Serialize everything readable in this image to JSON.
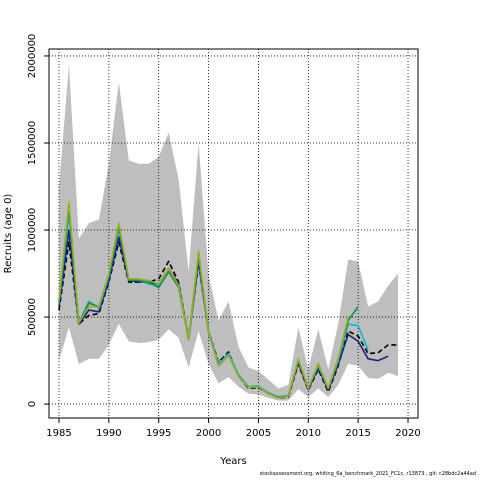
{
  "chart_data": {
    "type": "line",
    "xlabel": "Years",
    "ylabel": "Recruits (age 0)",
    "xlim": [
      1984,
      2021
    ],
    "ylim": [
      -80000,
      2040000
    ],
    "xticks": [
      1985,
      1990,
      1995,
      2000,
      2005,
      2010,
      2015,
      2020
    ],
    "yticks": [
      0,
      500000,
      1000000,
      1500000,
      2000000
    ],
    "xtick_labels": [
      "1985",
      "1990",
      "1995",
      "2000",
      "2005",
      "2010",
      "2015",
      "2020"
    ],
    "ytick_labels": [
      "0",
      "500000",
      "1000000",
      "1500000",
      "2000000"
    ],
    "grid": true,
    "legend": "none",
    "band": {
      "x": [
        1985,
        1986,
        1987,
        1988,
        1989,
        1990,
        1991,
        1992,
        1993,
        1994,
        1995,
        1996,
        1997,
        1998,
        1999,
        2000,
        2001,
        2002,
        2003,
        2004,
        2005,
        2006,
        2007,
        2008,
        2009,
        2010,
        2011,
        2012,
        2013,
        2014,
        2015,
        2016,
        2017,
        2018,
        2019
      ],
      "upper": [
        1250000,
        1950000,
        950000,
        1040000,
        1060000,
        1380000,
        1850000,
        1400000,
        1380000,
        1380000,
        1420000,
        1560000,
        1290000,
        760000,
        1500000,
        740000,
        480000,
        590000,
        330000,
        210000,
        190000,
        140000,
        90000,
        110000,
        440000,
        200000,
        430000,
        200000,
        460000,
        830000,
        820000,
        560000,
        590000,
        680000,
        750000
      ],
      "lower": [
        250000,
        440000,
        230000,
        260000,
        260000,
        340000,
        460000,
        360000,
        350000,
        355000,
        370000,
        430000,
        380000,
        210000,
        420000,
        230000,
        120000,
        155000,
        100000,
        60000,
        55000,
        35000,
        20000,
        20000,
        85000,
        40000,
        90000,
        40000,
        110000,
        230000,
        220000,
        150000,
        145000,
        180000,
        160000
      ],
      "color": "#bebebe"
    },
    "series": [
      {
        "color": "#000000",
        "dashed": true,
        "x": [
          1985,
          1986,
          1987,
          1988,
          1989,
          1990,
          1991,
          1992,
          1993,
          1994,
          1995,
          1996,
          1997,
          1998,
          1999,
          2000,
          2001,
          2002,
          2003,
          2004,
          2005,
          2006,
          2007,
          2008,
          2009,
          2010,
          2011,
          2012,
          2013,
          2014,
          2015,
          2016,
          2017,
          2018,
          2019
        ],
        "values": [
          540000,
          930000,
          460000,
          510000,
          520000,
          700000,
          930000,
          700000,
          700000,
          700000,
          720000,
          820000,
          700000,
          380000,
          810000,
          420000,
          240000,
          300000,
          160000,
          90000,
          95000,
          60000,
          35000,
          40000,
          230000,
          80000,
          200000,
          70000,
          220000,
          420000,
          390000,
          290000,
          295000,
          340000,
          340000
        ]
      },
      {
        "color": "#1a237e",
        "x": [
          1985,
          1986,
          1987,
          1988,
          1989,
          1990,
          1991,
          1992,
          1993,
          1994,
          1995,
          1996,
          1997,
          1998,
          1999,
          2000,
          2001,
          2002,
          2003,
          2004,
          2005,
          2006,
          2007,
          2008,
          2009,
          2010,
          2011,
          2012,
          2013,
          2014,
          2015,
          2016,
          2017,
          2018
        ],
        "values": [
          560000,
          1000000,
          460000,
          540000,
          530000,
          710000,
          960000,
          710000,
          700000,
          700000,
          690000,
          780000,
          690000,
          370000,
          830000,
          410000,
          230000,
          290000,
          160000,
          95000,
          100000,
          65000,
          40000,
          45000,
          240000,
          85000,
          210000,
          80000,
          230000,
          400000,
          360000,
          260000,
          250000,
          275000
        ]
      },
      {
        "color": "#00bcd4",
        "x": [
          1985,
          1986,
          1987,
          1988,
          1989,
          1990,
          1991,
          1992,
          1993,
          1994,
          1995,
          1996,
          1997,
          1998,
          1999,
          2000,
          2001,
          2002,
          2003,
          2004,
          2005,
          2006,
          2007,
          2008,
          2009,
          2010,
          2011,
          2012,
          2013,
          2014,
          2015,
          2016
        ],
        "values": [
          580000,
          1100000,
          470000,
          590000,
          550000,
          730000,
          1010000,
          720000,
          710000,
          690000,
          680000,
          770000,
          680000,
          380000,
          850000,
          420000,
          230000,
          290000,
          170000,
          100000,
          105000,
          65000,
          40000,
          50000,
          250000,
          95000,
          220000,
          90000,
          250000,
          460000,
          450000,
          310000
        ]
      },
      {
        "color": "#1b8a4b",
        "x": [
          1985,
          1986,
          1987,
          1988,
          1989,
          1990,
          1991,
          1992,
          1993,
          1994,
          1995,
          1996,
          1997,
          1998,
          1999,
          2000,
          2001,
          2002,
          2003,
          2004,
          2005,
          2006,
          2007,
          2008,
          2009,
          2010,
          2011,
          2012,
          2013,
          2014,
          2015
        ],
        "values": [
          590000,
          1130000,
          460000,
          580000,
          560000,
          740000,
          1020000,
          710000,
          710000,
          700000,
          670000,
          760000,
          670000,
          370000,
          860000,
          410000,
          220000,
          280000,
          160000,
          95000,
          100000,
          60000,
          40000,
          45000,
          255000,
          90000,
          230000,
          90000,
          260000,
          480000,
          560000
        ]
      },
      {
        "color": "#9bb020",
        "x": [
          1985,
          1986,
          1987,
          1988,
          1989,
          1990,
          1991,
          1992,
          1993,
          1994,
          1995,
          1996,
          1997,
          1998,
          1999,
          2000,
          2001,
          2002,
          2003,
          2004,
          2005,
          2006,
          2007,
          2008,
          2009,
          2010,
          2011,
          2012,
          2013,
          2014
        ],
        "values": [
          600000,
          1160000,
          470000,
          560000,
          560000,
          750000,
          1040000,
          720000,
          720000,
          710000,
          690000,
          780000,
          680000,
          370000,
          880000,
          410000,
          220000,
          280000,
          160000,
          95000,
          100000,
          60000,
          35000,
          45000,
          260000,
          90000,
          230000,
          90000,
          260000,
          500000
        ]
      }
    ]
  },
  "footer": {
    "credit": "stockassessment.org,  whiting_6a_benchmark_2021_FC1c,  r13873 ,  git:  c28bdc2a44ad"
  }
}
